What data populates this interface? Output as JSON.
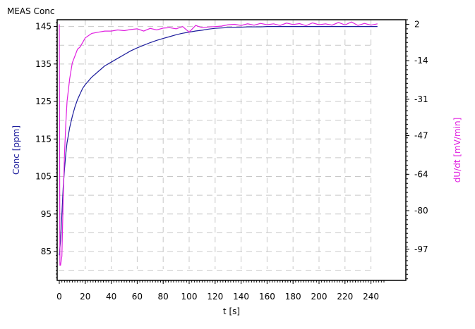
{
  "chart_data": {
    "type": "line",
    "title": "MEAS Conc",
    "xlabel": "t [s]",
    "ylabel_left": "Conc [ppm]",
    "ylabel_right": "dU/dt [mV/min]",
    "xlim": [
      0,
      250
    ],
    "ylim_left": [
      77.3,
      146.8
    ],
    "ylim_right": [
      -110.7,
      4.0
    ],
    "x_ticks": [
      0,
      20,
      40,
      60,
      80,
      100,
      120,
      140,
      160,
      180,
      200,
      220,
      240
    ],
    "y_left_ticks": [
      85,
      95,
      105,
      115,
      125,
      135,
      145
    ],
    "y_right_ticks": [
      -97,
      -80,
      -64,
      -47,
      -31,
      -14,
      2
    ],
    "grid": true,
    "colors": {
      "conc": "#1c1c9c",
      "dudt": "#e020e0",
      "grid": "#c8c8c8"
    },
    "series": [
      {
        "axis": "left",
        "x": [
          0,
          1,
          2,
          3,
          4,
          5,
          6,
          8,
          10,
          12,
          14,
          16,
          18,
          20,
          25,
          30,
          35,
          40,
          45,
          50,
          55,
          60,
          65,
          70,
          75,
          80,
          85,
          90,
          95,
          100,
          105,
          110,
          115,
          120,
          125,
          130,
          135,
          140,
          145,
          150,
          155,
          160,
          165,
          170,
          175,
          180,
          185,
          190,
          195,
          200,
          205,
          210,
          215,
          220,
          225,
          230,
          235,
          240,
          245
        ],
        "values": [
          84,
          88,
          95,
          102,
          107,
          111,
          114,
          118,
          121,
          123.5,
          125.5,
          127,
          128.5,
          129.5,
          131.5,
          133,
          134.5,
          135.5,
          136.5,
          137.5,
          138.5,
          139.3,
          140,
          140.7,
          141.3,
          141.8,
          142.3,
          142.8,
          143.2,
          143.5,
          143.8,
          144,
          144.3,
          144.5,
          144.6,
          144.7,
          144.8,
          144.8,
          144.9,
          144.9,
          144.9,
          145,
          145,
          145,
          145,
          145,
          145,
          145,
          145,
          145,
          145,
          145,
          145,
          145,
          145,
          145,
          145,
          145,
          145
        ]
      },
      {
        "axis": "right",
        "x": [
          0,
          0.5,
          1,
          2,
          3,
          4,
          5,
          6,
          8,
          10,
          12,
          14,
          16,
          18,
          20,
          25,
          30,
          35,
          40,
          45,
          50,
          55,
          60,
          65,
          70,
          75,
          80,
          85,
          90,
          95,
          100,
          105,
          110,
          115,
          120,
          125,
          130,
          135,
          140,
          145,
          150,
          155,
          160,
          165,
          170,
          175,
          180,
          185,
          190,
          195,
          200,
          205,
          210,
          215,
          220,
          225,
          230,
          235,
          240,
          245
        ],
        "values": [
          2,
          -104,
          -104,
          -100,
          -75,
          -55,
          -42,
          -32,
          -22,
          -15,
          -12,
          -9,
          -8,
          -6,
          -4,
          -2,
          -1.5,
          -1,
          -1,
          -0.5,
          -0.8,
          -0.3,
          0,
          -1,
          0.2,
          -0.5,
          0.3,
          0.5,
          0,
          1,
          -1.5,
          1.5,
          0.5,
          0.8,
          1,
          1.2,
          1.8,
          2,
          1.5,
          2.2,
          1.6,
          2.4,
          1.8,
          2.2,
          1.5,
          2.5,
          1.9,
          2.3,
          1.4,
          2.6,
          1.8,
          2.2,
          1.6,
          2.8,
          1.7,
          3,
          1.5,
          2.4,
          1.6,
          2.2
        ]
      }
    ]
  }
}
